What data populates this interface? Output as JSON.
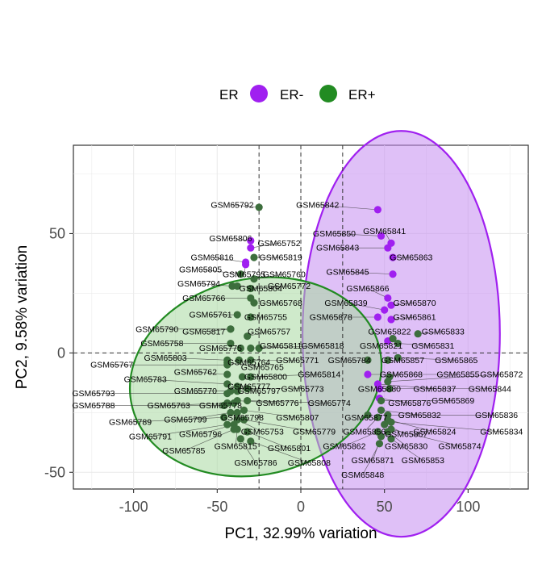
{
  "chart_data": {
    "type": "scatter",
    "title": "",
    "xlabel": "PC1, 32.99% variation",
    "ylabel": "PC2, 9.58% variation",
    "xlim": [
      -136,
      136
    ],
    "ylim": [
      -57,
      87
    ],
    "xticks": [
      -100,
      -50,
      0,
      50,
      100
    ],
    "yticks": [
      -50,
      0,
      50
    ],
    "grid": true,
    "reference_lines": {
      "vertical": [
        -25,
        0,
        25
      ],
      "horizontal": [
        0
      ]
    },
    "legend": {
      "position": "top",
      "title": "ER",
      "entries": [
        {
          "label": "ER-",
          "color": "#A020F0"
        },
        {
          "label": "ER+",
          "color": "#228B22"
        }
      ]
    },
    "ellipses": [
      {
        "group": "ER-",
        "center": [
          60,
          8
        ],
        "rx": 59,
        "ry": 85,
        "fill": "#C58CF0",
        "stroke": "#A020F0"
      },
      {
        "group": "ER+",
        "center": [
          -27,
          -10
        ],
        "rx": 76,
        "ry": 41,
        "angle": -13,
        "fill": "#A8D8A0",
        "stroke": "#228B22"
      }
    ],
    "series": [
      {
        "name": "ER-",
        "color": "#A020F0",
        "points": [
          {
            "label": "GSM65842",
            "x": 46,
            "y": 60,
            "lx": 10,
            "ly": 62
          },
          {
            "label": "GSM65841",
            "x": 54,
            "y": 46,
            "lx": 50,
            "ly": 51
          },
          {
            "label": "GSM65850",
            "x": 48,
            "y": 49,
            "lx": 20,
            "ly": 50
          },
          {
            "label": "GSM65843",
            "x": 52,
            "y": 44,
            "lx": 22,
            "ly": 44
          },
          {
            "label": "GSM65863",
            "x": 55,
            "y": 40,
            "lx": 66,
            "ly": 40
          },
          {
            "label": "GSM65845",
            "x": 55,
            "y": 33,
            "lx": 28,
            "ly": 34
          },
          {
            "label": "GSM65806",
            "x": -30,
            "y": 47,
            "lx": -42,
            "ly": 48
          },
          {
            "label": "GSM65752",
            "x": -30,
            "y": 44,
            "lx": -13,
            "ly": 46
          },
          {
            "label": "GSM65816",
            "x": -33,
            "y": 38,
            "lx": -53,
            "ly": 40
          },
          {
            "label": "GSM65795",
            "x": -33,
            "y": 37,
            "lx": -34,
            "ly": 33
          },
          {
            "label": "GSM65866",
            "x": 52,
            "y": 23,
            "lx": 40,
            "ly": 27
          },
          {
            "label": "GSM65870",
            "x": 54,
            "y": 20,
            "lx": 68,
            "ly": 21
          },
          {
            "label": "GSM65839",
            "x": 50,
            "y": 18,
            "lx": 27,
            "ly": 21
          },
          {
            "label": "GSM65861",
            "x": 54,
            "y": 14,
            "lx": 68,
            "ly": 15
          },
          {
            "label": "GSM65878",
            "x": 46,
            "y": 15,
            "lx": 18,
            "ly": 15
          },
          {
            "label": "GSM65821",
            "x": 52,
            "y": 5,
            "lx": 48,
            "ly": 3
          },
          {
            "label": "GSM65855",
            "x": 40,
            "y": -9,
            "lx": 94,
            "ly": -9
          },
          {
            "label": "GSM65837",
            "x": 46,
            "y": -13,
            "lx": 80,
            "ly": -15
          },
          {
            "label": "GSM65880",
            "x": 47,
            "y": -15,
            "lx": 47,
            "ly": -15
          },
          {
            "label": "GSM65876",
            "x": 47,
            "y": -19,
            "lx": 65,
            "ly": -21
          }
        ]
      },
      {
        "name": "ER+",
        "color": "#228B22",
        "points": [
          {
            "label": "GSM65792",
            "x": -25,
            "y": 61,
            "lx": -41,
            "ly": 62
          },
          {
            "label": "GSM65819",
            "x": -28,
            "y": 40,
            "lx": -12,
            "ly": 40
          },
          {
            "label": "GSM65805",
            "x": -36,
            "y": 33,
            "lx": -60,
            "ly": 35
          },
          {
            "label": "GSM65760",
            "x": -28,
            "y": 31,
            "lx": -10,
            "ly": 33
          },
          {
            "label": "GSM65794",
            "x": -41,
            "y": 28,
            "lx": -61,
            "ly": 29
          },
          {
            "label": "GSM65804",
            "x": -38,
            "y": 28,
            "lx": -24,
            "ly": 27
          },
          {
            "label": "GSM65772",
            "x": -30,
            "y": 27,
            "lx": -7,
            "ly": 28
          },
          {
            "label": "GSM65766",
            "x": -30,
            "y": 23,
            "lx": -58,
            "ly": 23
          },
          {
            "label": "GSM65768",
            "x": -28,
            "y": 21,
            "lx": -12,
            "ly": 21
          },
          {
            "label": "GSM65761",
            "x": -38,
            "y": 16,
            "lx": -54,
            "ly": 16
          },
          {
            "label": "GSM65755",
            "x": -30,
            "y": 15,
            "lx": -21,
            "ly": 15
          },
          {
            "label": "GSM65790",
            "x": -42,
            "y": 10,
            "lx": -86,
            "ly": 10
          },
          {
            "label": "GSM65817",
            "x": -42,
            "y": 10,
            "lx": -58,
            "ly": 9
          },
          {
            "label": "GSM65757",
            "x": -32,
            "y": 7,
            "lx": -19,
            "ly": 9
          },
          {
            "label": "GSM65758",
            "x": -42,
            "y": 4,
            "lx": -83,
            "ly": 4
          },
          {
            "label": "GSM65775",
            "x": -36,
            "y": 2,
            "lx": -48,
            "ly": 2
          },
          {
            "label": "GSM65811",
            "x": -30,
            "y": 2,
            "lx": -12,
            "ly": 3
          },
          {
            "label": "GSM65818",
            "x": -25,
            "y": 2,
            "lx": 13,
            "ly": 3
          },
          {
            "label": "GSM65803",
            "x": -44,
            "y": -3,
            "lx": -81,
            "ly": -2
          },
          {
            "label": "GSM65764",
            "x": -37,
            "y": -3,
            "lx": -31,
            "ly": -4
          },
          {
            "label": "GSM65771",
            "x": -30,
            "y": -3,
            "lx": -2,
            "ly": -3
          },
          {
            "label": "GSM65784",
            "x": 40,
            "y": -3,
            "lx": 29,
            "ly": -3
          },
          {
            "label": "GSM65857",
            "x": 52,
            "y": -3,
            "lx": 61,
            "ly": -3
          },
          {
            "label": "GSM65765",
            "x": -44,
            "y": -4,
            "lx": -23,
            "ly": -6
          },
          {
            "label": "GSM65767",
            "x": -44,
            "y": -5,
            "lx": -113,
            "ly": -5
          },
          {
            "label": "GSM65762",
            "x": -44,
            "y": -9,
            "lx": -63,
            "ly": -8
          },
          {
            "label": "GSM65800",
            "x": -35,
            "y": -10,
            "lx": -21,
            "ly": -10
          },
          {
            "label": "GSM65814",
            "x": -30,
            "y": -10,
            "lx": 11,
            "ly": -9
          },
          {
            "label": "GSM65868",
            "x": 53,
            "y": -10,
            "lx": 60,
            "ly": -9
          },
          {
            "label": "GSM65872",
            "x": 52,
            "y": -12,
            "lx": 120,
            "ly": -9
          },
          {
            "label": "GSM65783",
            "x": -44,
            "y": -13,
            "lx": -93,
            "ly": -11
          },
          {
            "label": "GSM65777",
            "x": -38,
            "y": -14,
            "lx": -31,
            "ly": -14
          },
          {
            "label": "GSM65773",
            "x": -32,
            "y": -15,
            "lx": 1,
            "ly": -15
          },
          {
            "label": "GSM65844",
            "x": 53,
            "y": -15,
            "lx": 113,
            "ly": -15
          },
          {
            "label": "GSM65770",
            "x": -42,
            "y": -16,
            "lx": -63,
            "ly": -16
          },
          {
            "label": "GSM65797",
            "x": -38,
            "y": -16,
            "lx": -25,
            "ly": -16
          },
          {
            "label": "GSM65793",
            "x": -44,
            "y": -17,
            "lx": -124,
            "ly": -17
          },
          {
            "label": "GSM65776",
            "x": -38,
            "y": -20,
            "lx": -14,
            "ly": -21
          },
          {
            "label": "GSM65774",
            "x": -32,
            "y": -20,
            "lx": 17,
            "ly": -21
          },
          {
            "label": "GSM65763",
            "x": -44,
            "y": -21,
            "lx": -79,
            "ly": -22
          },
          {
            "label": "GSM65778",
            "x": -40,
            "y": -21,
            "lx": -48,
            "ly": -22
          },
          {
            "label": "GSM65869",
            "x": 48,
            "y": -20,
            "lx": 91,
            "ly": -20
          },
          {
            "label": "GSM65788",
            "x": -46,
            "y": -22,
            "lx": -124,
            "ly": -22
          },
          {
            "label": "GSM65807",
            "x": -34,
            "y": -24,
            "lx": -2,
            "ly": -27
          },
          {
            "label": "GSM65832",
            "x": 48,
            "y": -24,
            "lx": 71,
            "ly": -26
          },
          {
            "label": "GSM65799",
            "x": -42,
            "y": -25,
            "lx": -69,
            "ly": -28
          },
          {
            "label": "GSM65798",
            "x": -38,
            "y": -25,
            "lx": -35,
            "ly": -27
          },
          {
            "label": "GSM65877",
            "x": 40,
            "y": -26,
            "lx": 39,
            "ly": -27
          },
          {
            "label": "GSM65836",
            "x": 52,
            "y": -26,
            "lx": 117,
            "ly": -26
          },
          {
            "label": "GSM65789",
            "x": -46,
            "y": -27,
            "lx": -102,
            "ly": -29
          },
          {
            "label": "GSM65753",
            "x": -38,
            "y": -28,
            "lx": -23,
            "ly": -33
          },
          {
            "label": "GSM65779",
            "x": -34,
            "y": -28,
            "lx": 8,
            "ly": -33
          },
          {
            "label": "GSM65856",
            "x": 46,
            "y": -27,
            "lx": 38,
            "ly": -33
          },
          {
            "label": "GSM65824",
            "x": 52,
            "y": -28,
            "lx": 80,
            "ly": -33
          },
          {
            "label": "GSM65834",
            "x": 54,
            "y": -29,
            "lx": 120,
            "ly": -33
          },
          {
            "label": "GSM65867",
            "x": 50,
            "y": -30,
            "lx": 63,
            "ly": -34
          },
          {
            "label": "GSM65796",
            "x": -40,
            "y": -30,
            "lx": -60,
            "ly": -34
          },
          {
            "label": "GSM65791",
            "x": -44,
            "y": -30,
            "lx": -90,
            "ly": -35
          },
          {
            "label": "GSM65815",
            "x": -38,
            "y": -32,
            "lx": -39,
            "ly": -39
          },
          {
            "label": "GSM65801",
            "x": -32,
            "y": -33,
            "lx": -7,
            "ly": -40
          },
          {
            "label": "GSM65862",
            "x": 46,
            "y": -33,
            "lx": 26,
            "ly": -39
          },
          {
            "label": "GSM65830",
            "x": 52,
            "y": -33,
            "lx": 63,
            "ly": -39
          },
          {
            "label": "GSM65874",
            "x": 54,
            "y": -32,
            "lx": 95,
            "ly": -39
          },
          {
            "label": "GSM65785",
            "x": -40,
            "y": -32,
            "lx": -70,
            "ly": -41
          },
          {
            "label": "GSM65871",
            "x": 48,
            "y": -35,
            "lx": 43,
            "ly": -45
          },
          {
            "label": "GSM65853",
            "x": 54,
            "y": -36,
            "lx": 73,
            "ly": -45
          },
          {
            "label": "GSM65786",
            "x": -36,
            "y": -36,
            "lx": -27,
            "ly": -46
          },
          {
            "label": "GSM65808",
            "x": -30,
            "y": -37,
            "lx": 5,
            "ly": -46
          },
          {
            "label": "GSM65848",
            "x": 47,
            "y": -38,
            "lx": 37,
            "ly": -51
          },
          {
            "label": "GSM65822",
            "x": 55,
            "y": 6,
            "lx": 53,
            "ly": 9
          },
          {
            "label": "GSM65833",
            "x": 70,
            "y": 8,
            "lx": 85,
            "ly": 9
          },
          {
            "label": "GSM65831",
            "x": 58,
            "y": 4,
            "lx": 79,
            "ly": 3
          },
          {
            "label": "GSM65865",
            "x": 58,
            "y": -2,
            "lx": 93,
            "ly": -3
          }
        ]
      }
    ]
  }
}
